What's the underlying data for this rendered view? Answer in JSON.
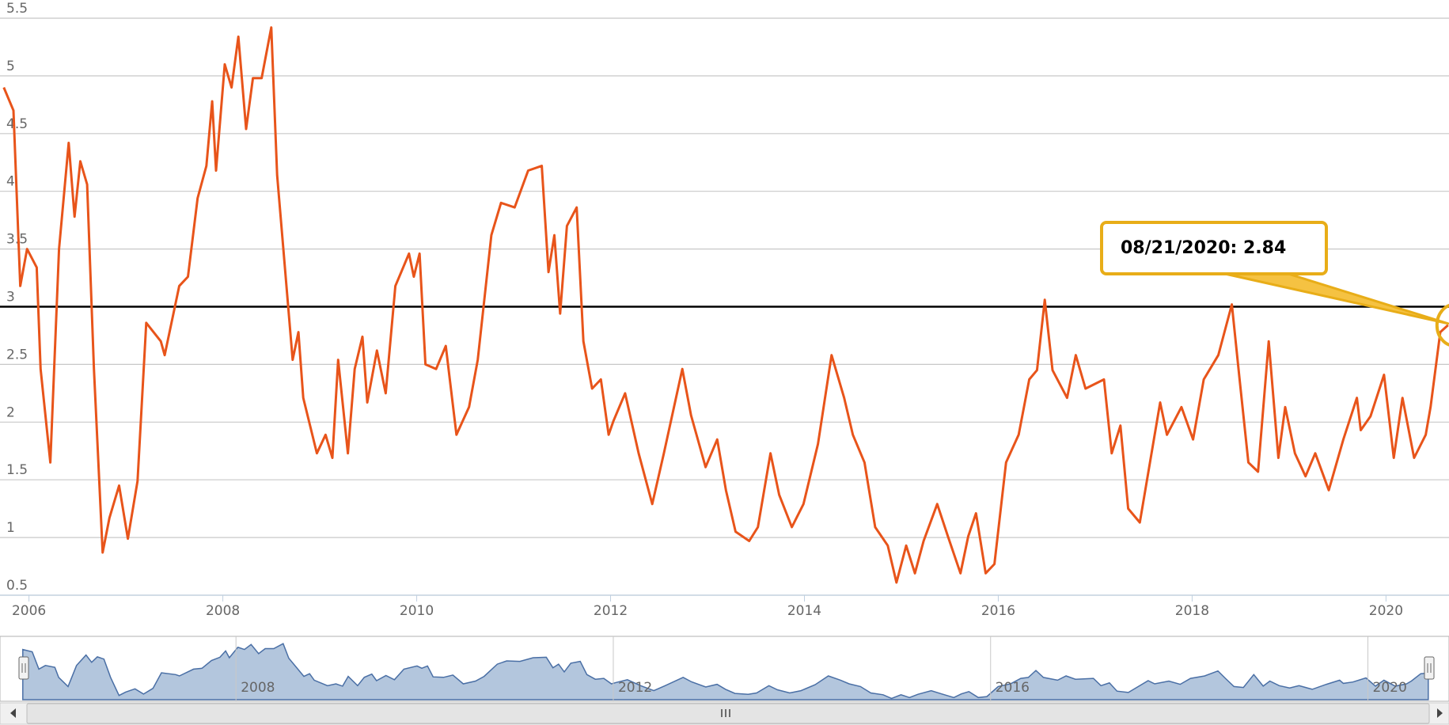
{
  "chart_data": {
    "type": "line",
    "x": [
      2005.74,
      2005.84,
      2005.91,
      2005.98,
      2006.08,
      2006.12,
      2006.22,
      2006.31,
      2006.41,
      2006.47,
      2006.53,
      2006.6,
      2006.67,
      2006.76,
      2006.83,
      2006.93,
      2007.02,
      2007.12,
      2007.21,
      2007.36,
      2007.4,
      2007.55,
      2007.64,
      2007.74,
      2007.83,
      2007.89,
      2007.93,
      2008.02,
      2008.09,
      2008.16,
      2008.24,
      2008.31,
      2008.4,
      2008.5,
      2008.56,
      2008.64,
      2008.72,
      2008.78,
      2008.83,
      2008.97,
      2009.06,
      2009.13,
      2009.19,
      2009.29,
      2009.36,
      2009.44,
      2009.49,
      2009.59,
      2009.68,
      2009.78,
      2009.92,
      2009.97,
      2010.03,
      2010.09,
      2010.2,
      2010.3,
      2010.41,
      2010.54,
      2010.63,
      2010.77,
      2010.87,
      2011.01,
      2011.15,
      2011.29,
      2011.36,
      2011.42,
      2011.48,
      2011.55,
      2011.65,
      2011.72,
      2011.81,
      2011.9,
      2011.98,
      2012.03,
      2012.15,
      2012.29,
      2012.43,
      2012.55,
      2012.74,
      2012.83,
      2012.98,
      2013.1,
      2013.19,
      2013.29,
      2013.43,
      2013.52,
      2013.65,
      2013.74,
      2013.87,
      2013.99,
      2014.14,
      2014.28,
      2014.41,
      2014.5,
      2014.62,
      2014.73,
      2014.86,
      2014.95,
      2015.05,
      2015.14,
      2015.23,
      2015.37,
      2015.48,
      2015.61,
      2015.69,
      2015.77,
      2015.87,
      2015.96,
      2016.08,
      2016.21,
      2016.32,
      2016.4,
      2016.48,
      2016.56,
      2016.71,
      2016.8,
      2016.9,
      2017.09,
      2017.17,
      2017.26,
      2017.34,
      2017.46,
      2017.67,
      2017.74,
      2017.89,
      2018.01,
      2018.12,
      2018.27,
      2018.41,
      2018.49,
      2018.58,
      2018.68,
      2018.79,
      2018.89,
      2018.96,
      2019.06,
      2019.17,
      2019.27,
      2019.41,
      2019.56,
      2019.7,
      2019.74,
      2019.84,
      2019.98,
      2020.08,
      2020.17,
      2020.29,
      2020.41,
      2020.46,
      2020.56,
      2020.64
    ],
    "values": [
      4.9,
      4.7,
      3.18,
      3.5,
      3.34,
      2.46,
      1.65,
      3.5,
      4.42,
      3.78,
      4.26,
      4.06,
      2.46,
      0.87,
      1.17,
      1.45,
      0.99,
      1.49,
      2.86,
      2.7,
      2.58,
      3.18,
      3.26,
      3.94,
      4.22,
      4.78,
      4.18,
      5.1,
      4.9,
      5.34,
      4.54,
      4.98,
      4.98,
      5.42,
      4.14,
      3.34,
      2.54,
      2.78,
      2.21,
      1.73,
      1.89,
      1.69,
      2.54,
      1.73,
      2.46,
      2.74,
      2.17,
      2.62,
      2.25,
      3.18,
      3.46,
      3.26,
      3.46,
      2.5,
      2.46,
      2.66,
      1.89,
      2.13,
      2.54,
      3.62,
      3.9,
      3.86,
      4.18,
      4.22,
      3.3,
      3.62,
      2.94,
      3.7,
      3.86,
      2.7,
      2.29,
      2.37,
      1.89,
      2.01,
      2.25,
      1.73,
      1.29,
      1.73,
      2.46,
      2.06,
      1.61,
      1.85,
      1.41,
      1.05,
      0.97,
      1.09,
      1.73,
      1.37,
      1.09,
      1.29,
      1.81,
      2.58,
      2.21,
      1.89,
      1.65,
      1.09,
      0.93,
      0.61,
      0.93,
      0.69,
      0.97,
      1.29,
      1.01,
      0.69,
      1.01,
      1.21,
      0.69,
      0.77,
      1.65,
      1.89,
      2.37,
      2.45,
      3.06,
      2.45,
      2.21,
      2.58,
      2.29,
      2.37,
      1.73,
      1.97,
      1.25,
      1.13,
      2.17,
      1.89,
      2.13,
      1.85,
      2.37,
      2.58,
      3.02,
      2.37,
      1.65,
      1.57,
      2.7,
      1.69,
      2.13,
      1.73,
      1.53,
      1.73,
      1.41,
      1.85,
      2.21,
      1.93,
      2.05,
      2.41,
      1.69,
      2.21,
      1.69,
      1.89,
      2.13,
      2.78,
      2.84
    ],
    "color": "#e8541a",
    "xlim": [
      2005.75,
      2020.65
    ],
    "xticks": [
      2006,
      2008,
      2010,
      2012,
      2014,
      2016,
      2018,
      2020
    ],
    "ylim": [
      0.5,
      5.5
    ],
    "yticks": [
      0.5,
      1,
      1.5,
      2,
      2.5,
      3,
      3.5,
      4,
      4.5,
      5,
      5.5
    ],
    "grid": true,
    "plot_line": 3,
    "annotation": {
      "text": "08/21/2020: 2.84",
      "value": 2.84
    },
    "navigator": {
      "xticks": [
        2008,
        2012,
        2016,
        2020
      ],
      "color": "#4a6fa5"
    }
  }
}
